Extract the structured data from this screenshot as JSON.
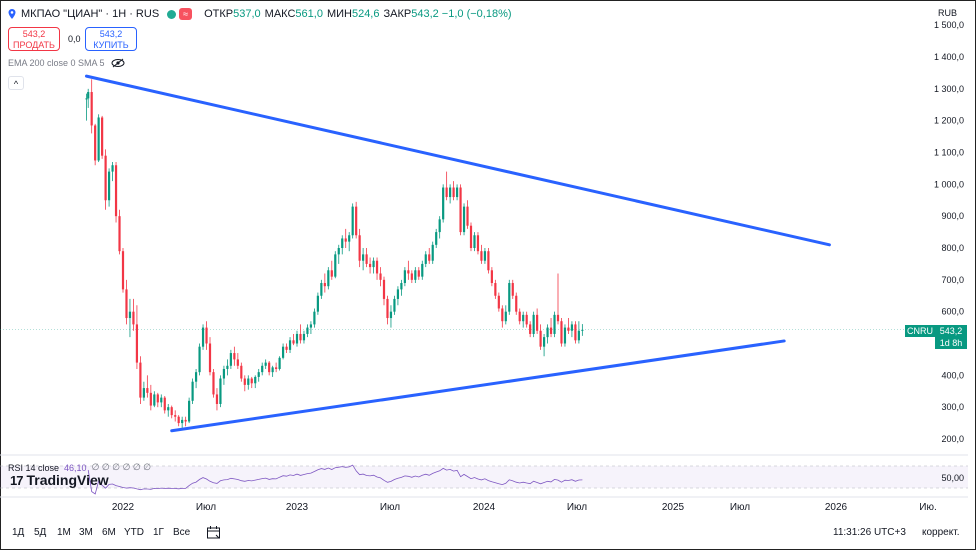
{
  "header": {
    "title": "МКПАО \"ЦИАН\" · 1Н · RUS",
    "wave_label": "≈",
    "ohlc": [
      {
        "k": "ОТКР",
        "v": "537,0"
      },
      {
        "k": "МАКС",
        "v": "561,0"
      },
      {
        "k": "МИН",
        "v": "524,6"
      },
      {
        "k": "ЗАКР",
        "v": "543,2 −1,0 (−0,18%)"
      }
    ],
    "currency": "RUB"
  },
  "trade": {
    "sell_price": "543,2",
    "sell_label": "ПРОДАТЬ",
    "spread": "0,0",
    "buy_price": "543,2",
    "buy_label": "КУПИТЬ"
  },
  "indicator": {
    "label": "EMA 200 close 0 SMA 5",
    "collapse": "^"
  },
  "y_axis": {
    "ticks": [
      "1 400,0",
      "1 300,0",
      "1 200,0",
      "1 100,0",
      "1 000,0",
      "900,0",
      "800,0",
      "700,0",
      "600,0",
      "500,0",
      "400,0",
      "300,0",
      "200,0"
    ],
    "values": [
      1400,
      1300,
      1200,
      1100,
      1000,
      900,
      800,
      700,
      600,
      500,
      400,
      300,
      200
    ],
    "top_partial": "1 500,0"
  },
  "price_tag": {
    "symbol": "CNRU",
    "price": "543,2",
    "countdown": "1d 8h"
  },
  "rsi": {
    "label": "RSI 14 close",
    "value": "46,10",
    "extras": "∅ ∅ ∅ ∅ ∅ ∅",
    "axis_label": "50,00"
  },
  "logo": {
    "text": "TradingView",
    "mark": "17"
  },
  "x_axis": {
    "labels": [
      "2022",
      "Июл",
      "2023",
      "Июл",
      "2024",
      "Июл",
      "2025",
      "Июл",
      "2026",
      "Ию."
    ]
  },
  "ranges": [
    "1Д",
    "5Д",
    "1М",
    "3М",
    "6М",
    "YTD",
    "1Г",
    "Все"
  ],
  "status": {
    "time": "11:31:26 UTC+3",
    "correction": "коррект."
  },
  "colors": {
    "up": "#089981",
    "down": "#f23645",
    "trend": "#2962ff",
    "rsi": "#7e57c2"
  },
  "chart_data": {
    "type": "candlestick",
    "title": "МКПАО \"ЦИАН\" · 1Н · RUS",
    "y_unit": "RUB",
    "ylim": [
      150,
      1560
    ],
    "time_range": [
      2021.79,
      2026.9
    ],
    "series": [
      {
        "t": 2021.79,
        "o": 1270,
        "h": 1285,
        "l": 1200,
        "c": 1270
      },
      {
        "t": 2021.8,
        "o": 1270,
        "h": 1300,
        "l": 1240,
        "c": 1290
      },
      {
        "t": 2021.82,
        "o": 1290,
        "h": 1330,
        "l": 1160,
        "c": 1185
      },
      {
        "t": 2021.84,
        "o": 1185,
        "h": 1190,
        "l": 1060,
        "c": 1075
      },
      {
        "t": 2021.86,
        "o": 1075,
        "h": 1220,
        "l": 1070,
        "c": 1210
      },
      {
        "t": 2021.88,
        "o": 1210,
        "h": 1215,
        "l": 1080,
        "c": 1090
      },
      {
        "t": 2021.9,
        "o": 1090,
        "h": 1110,
        "l": 920,
        "c": 950
      },
      {
        "t": 2021.92,
        "o": 950,
        "h": 1050,
        "l": 930,
        "c": 1040
      },
      {
        "t": 2021.94,
        "o": 1040,
        "h": 1070,
        "l": 1010,
        "c": 1060
      },
      {
        "t": 2021.96,
        "o": 1060,
        "h": 1070,
        "l": 880,
        "c": 900
      },
      {
        "t": 2021.98,
        "o": 900,
        "h": 920,
        "l": 780,
        "c": 790
      },
      {
        "t": 2022.0,
        "o": 790,
        "h": 800,
        "l": 660,
        "c": 670
      },
      {
        "t": 2022.02,
        "o": 670,
        "h": 700,
        "l": 560,
        "c": 580
      },
      {
        "t": 2022.04,
        "o": 580,
        "h": 640,
        "l": 520,
        "c": 600
      },
      {
        "t": 2022.06,
        "o": 600,
        "h": 640,
        "l": 540,
        "c": 560
      },
      {
        "t": 2022.08,
        "o": 560,
        "h": 620,
        "l": 420,
        "c": 440
      },
      {
        "t": 2022.1,
        "o": 440,
        "h": 460,
        "l": 310,
        "c": 330
      },
      {
        "t": 2022.12,
        "o": 330,
        "h": 380,
        "l": 320,
        "c": 360
      },
      {
        "t": 2022.14,
        "o": 360,
        "h": 400,
        "l": 330,
        "c": 345
      },
      {
        "t": 2022.16,
        "o": 345,
        "h": 370,
        "l": 290,
        "c": 305
      },
      {
        "t": 2022.18,
        "o": 305,
        "h": 350,
        "l": 300,
        "c": 340
      },
      {
        "t": 2022.2,
        "o": 340,
        "h": 345,
        "l": 300,
        "c": 315
      },
      {
        "t": 2022.22,
        "o": 315,
        "h": 340,
        "l": 300,
        "c": 330
      },
      {
        "t": 2022.24,
        "o": 330,
        "h": 335,
        "l": 280,
        "c": 290
      },
      {
        "t": 2022.26,
        "o": 290,
        "h": 310,
        "l": 270,
        "c": 300
      },
      {
        "t": 2022.28,
        "o": 300,
        "h": 305,
        "l": 265,
        "c": 275
      },
      {
        "t": 2022.3,
        "o": 275,
        "h": 290,
        "l": 255,
        "c": 270
      },
      {
        "t": 2022.32,
        "o": 270,
        "h": 275,
        "l": 240,
        "c": 250
      },
      {
        "t": 2022.34,
        "o": 250,
        "h": 270,
        "l": 235,
        "c": 260
      },
      {
        "t": 2022.36,
        "o": 260,
        "h": 270,
        "l": 240,
        "c": 255
      },
      {
        "t": 2022.38,
        "o": 255,
        "h": 330,
        "l": 250,
        "c": 320
      },
      {
        "t": 2022.4,
        "o": 320,
        "h": 390,
        "l": 310,
        "c": 380
      },
      {
        "t": 2022.42,
        "o": 380,
        "h": 420,
        "l": 360,
        "c": 410
      },
      {
        "t": 2022.44,
        "o": 410,
        "h": 500,
        "l": 400,
        "c": 490
      },
      {
        "t": 2022.46,
        "o": 490,
        "h": 560,
        "l": 480,
        "c": 550
      },
      {
        "t": 2022.48,
        "o": 550,
        "h": 570,
        "l": 480,
        "c": 500
      },
      {
        "t": 2022.5,
        "o": 500,
        "h": 520,
        "l": 400,
        "c": 410
      },
      {
        "t": 2022.52,
        "o": 410,
        "h": 420,
        "l": 330,
        "c": 340
      },
      {
        "t": 2022.54,
        "o": 340,
        "h": 360,
        "l": 290,
        "c": 310
      },
      {
        "t": 2022.56,
        "o": 310,
        "h": 400,
        "l": 300,
        "c": 390
      },
      {
        "t": 2022.58,
        "o": 390,
        "h": 430,
        "l": 370,
        "c": 420
      },
      {
        "t": 2022.6,
        "o": 420,
        "h": 450,
        "l": 400,
        "c": 430
      },
      {
        "t": 2022.62,
        "o": 430,
        "h": 480,
        "l": 420,
        "c": 470
      },
      {
        "t": 2022.64,
        "o": 470,
        "h": 490,
        "l": 430,
        "c": 450
      },
      {
        "t": 2022.66,
        "o": 450,
        "h": 470,
        "l": 420,
        "c": 430
      },
      {
        "t": 2022.68,
        "o": 430,
        "h": 440,
        "l": 380,
        "c": 390
      },
      {
        "t": 2022.7,
        "o": 390,
        "h": 400,
        "l": 350,
        "c": 370
      },
      {
        "t": 2022.72,
        "o": 370,
        "h": 400,
        "l": 355,
        "c": 390
      },
      {
        "t": 2022.74,
        "o": 390,
        "h": 395,
        "l": 360,
        "c": 375
      },
      {
        "t": 2022.76,
        "o": 375,
        "h": 400,
        "l": 360,
        "c": 395
      },
      {
        "t": 2022.78,
        "o": 395,
        "h": 420,
        "l": 380,
        "c": 410
      },
      {
        "t": 2022.8,
        "o": 410,
        "h": 440,
        "l": 400,
        "c": 430
      },
      {
        "t": 2022.82,
        "o": 430,
        "h": 450,
        "l": 420,
        "c": 440
      },
      {
        "t": 2022.84,
        "o": 440,
        "h": 445,
        "l": 400,
        "c": 410
      },
      {
        "t": 2022.86,
        "o": 410,
        "h": 430,
        "l": 395,
        "c": 425
      },
      {
        "t": 2022.88,
        "o": 425,
        "h": 440,
        "l": 410,
        "c": 420
      },
      {
        "t": 2022.9,
        "o": 420,
        "h": 460,
        "l": 415,
        "c": 455
      },
      {
        "t": 2022.92,
        "o": 455,
        "h": 500,
        "l": 450,
        "c": 490
      },
      {
        "t": 2022.94,
        "o": 490,
        "h": 500,
        "l": 470,
        "c": 480
      },
      {
        "t": 2022.96,
        "o": 480,
        "h": 520,
        "l": 470,
        "c": 510
      },
      {
        "t": 2022.98,
        "o": 510,
        "h": 530,
        "l": 495,
        "c": 500
      },
      {
        "t": 2023.0,
        "o": 500,
        "h": 540,
        "l": 490,
        "c": 530
      },
      {
        "t": 2023.02,
        "o": 530,
        "h": 560,
        "l": 500,
        "c": 510
      },
      {
        "t": 2023.04,
        "o": 510,
        "h": 540,
        "l": 500,
        "c": 530
      },
      {
        "t": 2023.06,
        "o": 530,
        "h": 560,
        "l": 520,
        "c": 550
      },
      {
        "t": 2023.08,
        "o": 550,
        "h": 570,
        "l": 530,
        "c": 560
      },
      {
        "t": 2023.1,
        "o": 560,
        "h": 610,
        "l": 550,
        "c": 600
      },
      {
        "t": 2023.12,
        "o": 600,
        "h": 660,
        "l": 590,
        "c": 650
      },
      {
        "t": 2023.14,
        "o": 650,
        "h": 700,
        "l": 640,
        "c": 690
      },
      {
        "t": 2023.16,
        "o": 690,
        "h": 720,
        "l": 660,
        "c": 680
      },
      {
        "t": 2023.18,
        "o": 680,
        "h": 740,
        "l": 670,
        "c": 730
      },
      {
        "t": 2023.2,
        "o": 730,
        "h": 760,
        "l": 700,
        "c": 710
      },
      {
        "t": 2023.22,
        "o": 710,
        "h": 790,
        "l": 705,
        "c": 780
      },
      {
        "t": 2023.24,
        "o": 780,
        "h": 810,
        "l": 750,
        "c": 800
      },
      {
        "t": 2023.26,
        "o": 800,
        "h": 840,
        "l": 780,
        "c": 830
      },
      {
        "t": 2023.28,
        "o": 830,
        "h": 860,
        "l": 800,
        "c": 820
      },
      {
        "t": 2023.3,
        "o": 820,
        "h": 850,
        "l": 790,
        "c": 840
      },
      {
        "t": 2023.32,
        "o": 840,
        "h": 940,
        "l": 830,
        "c": 930
      },
      {
        "t": 2023.34,
        "o": 930,
        "h": 945,
        "l": 830,
        "c": 840
      },
      {
        "t": 2023.36,
        "o": 840,
        "h": 860,
        "l": 740,
        "c": 760
      },
      {
        "t": 2023.38,
        "o": 760,
        "h": 800,
        "l": 730,
        "c": 780
      },
      {
        "t": 2023.4,
        "o": 780,
        "h": 800,
        "l": 740,
        "c": 750
      },
      {
        "t": 2023.42,
        "o": 750,
        "h": 770,
        "l": 720,
        "c": 740
      },
      {
        "t": 2023.44,
        "o": 740,
        "h": 770,
        "l": 720,
        "c": 760
      },
      {
        "t": 2023.46,
        "o": 760,
        "h": 770,
        "l": 700,
        "c": 720
      },
      {
        "t": 2023.48,
        "o": 720,
        "h": 740,
        "l": 680,
        "c": 700
      },
      {
        "t": 2023.5,
        "o": 700,
        "h": 710,
        "l": 620,
        "c": 640
      },
      {
        "t": 2023.52,
        "o": 640,
        "h": 650,
        "l": 560,
        "c": 580
      },
      {
        "t": 2023.54,
        "o": 580,
        "h": 620,
        "l": 550,
        "c": 600
      },
      {
        "t": 2023.56,
        "o": 600,
        "h": 650,
        "l": 590,
        "c": 640
      },
      {
        "t": 2023.58,
        "o": 640,
        "h": 680,
        "l": 620,
        "c": 670
      },
      {
        "t": 2023.6,
        "o": 670,
        "h": 700,
        "l": 650,
        "c": 690
      },
      {
        "t": 2023.62,
        "o": 690,
        "h": 740,
        "l": 680,
        "c": 730
      },
      {
        "t": 2023.64,
        "o": 730,
        "h": 760,
        "l": 700,
        "c": 720
      },
      {
        "t": 2023.66,
        "o": 720,
        "h": 730,
        "l": 690,
        "c": 700
      },
      {
        "t": 2023.68,
        "o": 700,
        "h": 740,
        "l": 690,
        "c": 730
      },
      {
        "t": 2023.7,
        "o": 730,
        "h": 740,
        "l": 700,
        "c": 710
      },
      {
        "t": 2023.72,
        "o": 710,
        "h": 760,
        "l": 700,
        "c": 750
      },
      {
        "t": 2023.74,
        "o": 750,
        "h": 790,
        "l": 740,
        "c": 780
      },
      {
        "t": 2023.76,
        "o": 780,
        "h": 800,
        "l": 750,
        "c": 760
      },
      {
        "t": 2023.78,
        "o": 760,
        "h": 820,
        "l": 750,
        "c": 810
      },
      {
        "t": 2023.8,
        "o": 810,
        "h": 860,
        "l": 800,
        "c": 850
      },
      {
        "t": 2023.82,
        "o": 850,
        "h": 900,
        "l": 830,
        "c": 890
      },
      {
        "t": 2023.84,
        "o": 890,
        "h": 1000,
        "l": 880,
        "c": 990
      },
      {
        "t": 2023.86,
        "o": 990,
        "h": 1040,
        "l": 950,
        "c": 960
      },
      {
        "t": 2023.88,
        "o": 960,
        "h": 1000,
        "l": 940,
        "c": 990
      },
      {
        "t": 2023.9,
        "o": 990,
        "h": 1010,
        "l": 950,
        "c": 960
      },
      {
        "t": 2023.92,
        "o": 960,
        "h": 1000,
        "l": 950,
        "c": 990
      },
      {
        "t": 2023.94,
        "o": 990,
        "h": 1000,
        "l": 840,
        "c": 850
      },
      {
        "t": 2023.96,
        "o": 850,
        "h": 940,
        "l": 840,
        "c": 930
      },
      {
        "t": 2023.98,
        "o": 930,
        "h": 950,
        "l": 860,
        "c": 870
      },
      {
        "t": 2024.0,
        "o": 870,
        "h": 880,
        "l": 790,
        "c": 800
      },
      {
        "t": 2024.02,
        "o": 800,
        "h": 850,
        "l": 790,
        "c": 840
      },
      {
        "t": 2024.04,
        "o": 840,
        "h": 850,
        "l": 780,
        "c": 790
      },
      {
        "t": 2024.06,
        "o": 790,
        "h": 810,
        "l": 750,
        "c": 760
      },
      {
        "t": 2024.08,
        "o": 760,
        "h": 800,
        "l": 750,
        "c": 790
      },
      {
        "t": 2024.1,
        "o": 790,
        "h": 800,
        "l": 720,
        "c": 730
      },
      {
        "t": 2024.12,
        "o": 730,
        "h": 740,
        "l": 680,
        "c": 690
      },
      {
        "t": 2024.14,
        "o": 690,
        "h": 700,
        "l": 640,
        "c": 650
      },
      {
        "t": 2024.16,
        "o": 650,
        "h": 660,
        "l": 600,
        "c": 610
      },
      {
        "t": 2024.18,
        "o": 610,
        "h": 620,
        "l": 550,
        "c": 570
      },
      {
        "t": 2024.2,
        "o": 570,
        "h": 620,
        "l": 560,
        "c": 600
      },
      {
        "t": 2024.22,
        "o": 600,
        "h": 700,
        "l": 590,
        "c": 690
      },
      {
        "t": 2024.24,
        "o": 690,
        "h": 700,
        "l": 640,
        "c": 650
      },
      {
        "t": 2024.26,
        "o": 650,
        "h": 660,
        "l": 590,
        "c": 600
      },
      {
        "t": 2024.28,
        "o": 600,
        "h": 610,
        "l": 560,
        "c": 570
      },
      {
        "t": 2024.3,
        "o": 570,
        "h": 600,
        "l": 550,
        "c": 590
      },
      {
        "t": 2024.32,
        "o": 590,
        "h": 600,
        "l": 550,
        "c": 560
      },
      {
        "t": 2024.34,
        "o": 560,
        "h": 570,
        "l": 520,
        "c": 530
      },
      {
        "t": 2024.36,
        "o": 530,
        "h": 600,
        "l": 520,
        "c": 590
      },
      {
        "t": 2024.38,
        "o": 590,
        "h": 610,
        "l": 530,
        "c": 540
      },
      {
        "t": 2024.4,
        "o": 540,
        "h": 560,
        "l": 480,
        "c": 490
      },
      {
        "t": 2024.42,
        "o": 490,
        "h": 530,
        "l": 460,
        "c": 520
      },
      {
        "t": 2024.44,
        "o": 520,
        "h": 560,
        "l": 500,
        "c": 550
      },
      {
        "t": 2024.46,
        "o": 550,
        "h": 580,
        "l": 520,
        "c": 530
      },
      {
        "t": 2024.48,
        "o": 530,
        "h": 600,
        "l": 520,
        "c": 590
      },
      {
        "t": 2024.5,
        "o": 590,
        "h": 720,
        "l": 560,
        "c": 570
      },
      {
        "t": 2024.52,
        "o": 570,
        "h": 580,
        "l": 490,
        "c": 500
      },
      {
        "t": 2024.54,
        "o": 500,
        "h": 560,
        "l": 490,
        "c": 550
      },
      {
        "t": 2024.56,
        "o": 550,
        "h": 580,
        "l": 530,
        "c": 540
      },
      {
        "t": 2024.58,
        "o": 540,
        "h": 570,
        "l": 520,
        "c": 560
      },
      {
        "t": 2024.6,
        "o": 560,
        "h": 570,
        "l": 500,
        "c": 510
      },
      {
        "t": 2024.62,
        "o": 510,
        "h": 570,
        "l": 500,
        "c": 540
      },
      {
        "t": 2024.64,
        "o": 540,
        "h": 561,
        "l": 524,
        "c": 543
      }
    ],
    "trendlines": [
      {
        "name": "upper",
        "t1": 2021.79,
        "p1": 1340,
        "t2": 2026.06,
        "p2": 810
      },
      {
        "name": "lower",
        "t1": 2022.28,
        "p1": 226,
        "t2": 2025.8,
        "p2": 508
      }
    ],
    "last_price": 543.2,
    "rsi": {
      "name": "RSI 14",
      "value": 46.1,
      "level": 50
    }
  }
}
